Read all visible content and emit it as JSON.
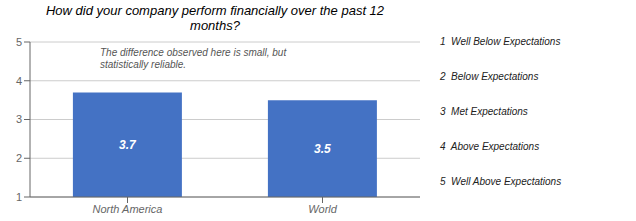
{
  "chart_data": {
    "type": "bar",
    "title": "How did your company perform financially over the past 12\nmonths?",
    "categories": [
      "North America",
      "World"
    ],
    "values": [
      3.7,
      3.5
    ],
    "color": "#4472C4",
    "ylim": [
      1,
      5
    ],
    "yticks": [
      1,
      2,
      3,
      4,
      5
    ],
    "grid": true,
    "data_labels": true,
    "annotation": "The difference observed here is small, but\nstatistically reliable.",
    "legend_items": [
      "1  Well Below Expectations",
      "2  Below Expectations",
      "3  Met Expectations",
      "4  Above Expectations",
      "5  Well Above Expectations"
    ]
  }
}
